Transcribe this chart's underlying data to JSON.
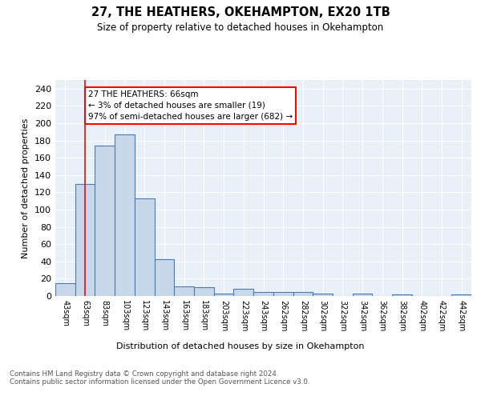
{
  "title": "27, THE HEATHERS, OKEHAMPTON, EX20 1TB",
  "subtitle": "Size of property relative to detached houses in Okehampton",
  "xlabel": "Distribution of detached houses by size in Okehampton",
  "ylabel": "Number of detached properties",
  "bin_labels": [
    "43sqm",
    "63sqm",
    "83sqm",
    "103sqm",
    "123sqm",
    "143sqm",
    "163sqm",
    "183sqm",
    "203sqm",
    "223sqm",
    "243sqm",
    "262sqm",
    "282sqm",
    "302sqm",
    "322sqm",
    "342sqm",
    "362sqm",
    "382sqm",
    "402sqm",
    "422sqm",
    "442sqm"
  ],
  "bar_values": [
    15,
    130,
    174,
    187,
    113,
    43,
    11,
    10,
    3,
    8,
    5,
    5,
    5,
    3,
    0,
    3,
    0,
    2,
    0,
    0,
    2
  ],
  "bar_color": "#c8d8e8",
  "bar_edge_color": "#4a7ab5",
  "red_line_x": 1,
  "annotation_text": "27 THE HEATHERS: 66sqm\n← 3% of detached houses are smaller (19)\n97% of semi-detached houses are larger (682) →",
  "annotation_box_color": "white",
  "annotation_box_edge": "red",
  "footer_text": "Contains HM Land Registry data © Crown copyright and database right 2024.\nContains public sector information licensed under the Open Government Licence v3.0.",
  "ylim": [
    0,
    250
  ],
  "yticks": [
    0,
    20,
    40,
    60,
    80,
    100,
    120,
    140,
    160,
    180,
    200,
    220,
    240
  ],
  "plot_bg_color": "#eaf0f8"
}
